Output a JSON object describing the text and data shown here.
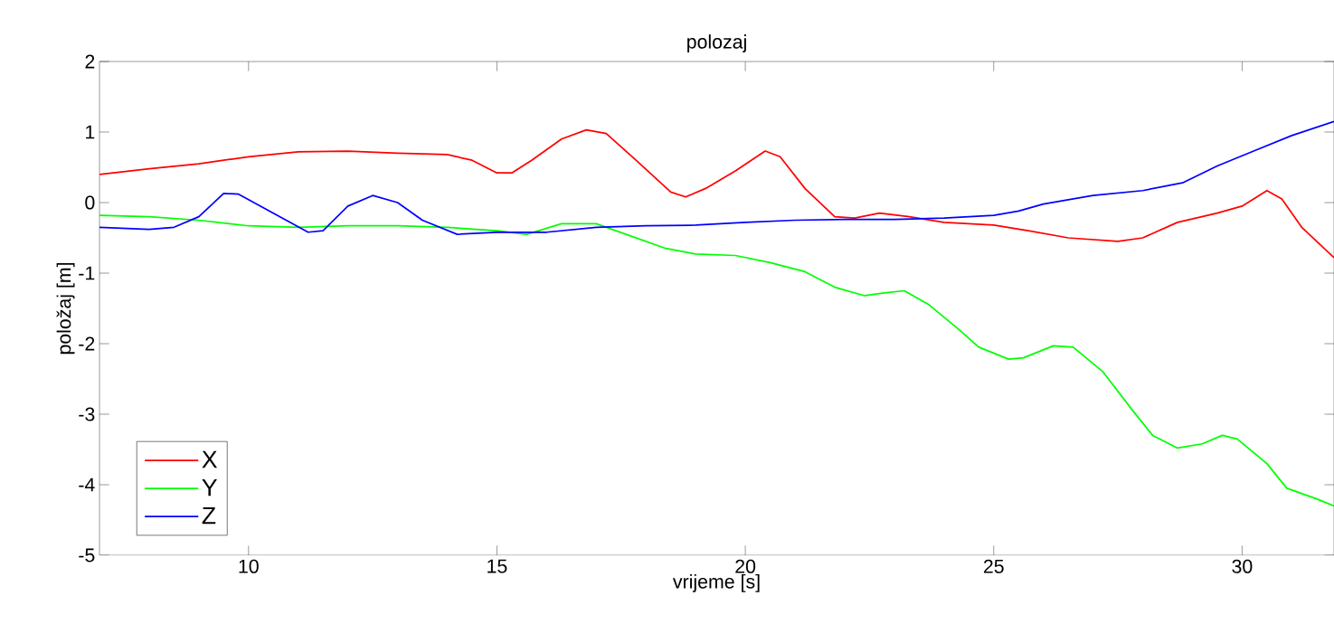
{
  "chart_data": {
    "type": "line",
    "title": "polozaj",
    "xlabel": "vrijeme [s]",
    "ylabel": "položaj [m]",
    "xlim": [
      7,
      31.85
    ],
    "ylim": [
      -5,
      2
    ],
    "xticks": [
      10,
      15,
      20,
      25,
      30
    ],
    "yticks": [
      -5,
      -4,
      -3,
      -2,
      -1,
      0,
      1,
      2
    ],
    "grid": false,
    "legend": "bottom left",
    "marker": "none",
    "line_style": "solid",
    "series": [
      {
        "name": "X",
        "color": "#ff0000",
        "x": [
          7,
          8,
          9,
          10,
          11,
          12,
          13,
          14,
          14.5,
          15,
          15.3,
          15.7,
          16.3,
          16.8,
          17.2,
          17.8,
          18.5,
          18.8,
          19.2,
          19.8,
          20.4,
          20.7,
          21.2,
          21.8,
          22.2,
          22.7,
          23.3,
          24,
          25,
          25.7,
          26.5,
          27.5,
          28,
          28.7,
          29.5,
          30,
          30.5,
          30.8,
          31.2,
          31.85
        ],
        "values": [
          0.4,
          0.48,
          0.55,
          0.65,
          0.72,
          0.73,
          0.7,
          0.68,
          0.6,
          0.42,
          0.42,
          0.6,
          0.9,
          1.03,
          0.98,
          0.6,
          0.15,
          0.08,
          0.2,
          0.45,
          0.73,
          0.65,
          0.2,
          -0.2,
          -0.22,
          -0.15,
          -0.2,
          -0.28,
          -0.32,
          -0.4,
          -0.5,
          -0.55,
          -0.5,
          -0.28,
          -0.15,
          -0.05,
          0.17,
          0.05,
          -0.35,
          -0.78
        ]
      },
      {
        "name": "Y",
        "color": "#00ff00",
        "x": [
          7,
          8,
          9,
          10,
          11,
          12,
          13,
          14,
          15,
          15.6,
          16.3,
          17,
          17.6,
          18.4,
          19,
          19.8,
          20.5,
          21.2,
          21.8,
          22.4,
          22.8,
          23.2,
          23.7,
          24.3,
          24.7,
          25.3,
          25.6,
          26.2,
          26.6,
          27.2,
          27.8,
          28.2,
          28.7,
          29.2,
          29.6,
          29.9,
          30.5,
          30.9,
          31.5,
          31.85
        ],
        "values": [
          -0.18,
          -0.2,
          -0.25,
          -0.33,
          -0.35,
          -0.33,
          -0.33,
          -0.35,
          -0.4,
          -0.45,
          -0.3,
          -0.3,
          -0.45,
          -0.65,
          -0.73,
          -0.75,
          -0.85,
          -0.98,
          -1.2,
          -1.32,
          -1.28,
          -1.25,
          -1.45,
          -1.8,
          -2.05,
          -2.22,
          -2.2,
          -2.03,
          -2.05,
          -2.4,
          -2.95,
          -3.3,
          -3.48,
          -3.42,
          -3.3,
          -3.35,
          -3.7,
          -4.05,
          -4.2,
          -4.3
        ]
      },
      {
        "name": "Z",
        "color": "#0000ff",
        "x": [
          7,
          8,
          8.5,
          9,
          9.5,
          9.8,
          10.5,
          11.2,
          11.5,
          12,
          12.5,
          13,
          13.5,
          14.2,
          15,
          16,
          17,
          18,
          19,
          20,
          21,
          22,
          23,
          24,
          25,
          25.5,
          26,
          27,
          28,
          28.8,
          29.5,
          30.3,
          31,
          31.85
        ],
        "values": [
          -0.35,
          -0.38,
          -0.35,
          -0.2,
          0.13,
          0.12,
          -0.15,
          -0.42,
          -0.4,
          -0.05,
          0.1,
          0.0,
          -0.25,
          -0.45,
          -0.42,
          -0.42,
          -0.35,
          -0.33,
          -0.32,
          -0.28,
          -0.25,
          -0.24,
          -0.24,
          -0.22,
          -0.18,
          -0.12,
          -0.02,
          0.1,
          0.17,
          0.28,
          0.52,
          0.75,
          0.95,
          1.15
        ]
      }
    ]
  }
}
